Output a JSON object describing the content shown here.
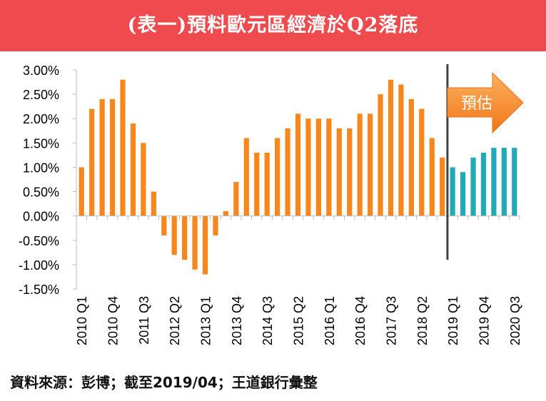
{
  "header": {
    "title": "(表一)預料歐元區經濟於Q2落底"
  },
  "colors": {
    "banner": "#ef4b4f",
    "actual": "#f7861c",
    "forecast": "#22a9b7",
    "divider": "#404040"
  },
  "forecast_label": "預估",
  "source": "資料來源：彭博；截至2019/04；王道銀行彙整",
  "chart_data": {
    "type": "bar",
    "title": "",
    "xlabel": "",
    "ylabel": "",
    "ylim": [
      -1.5,
      3.0
    ],
    "yticks": [
      3.0,
      2.5,
      2.0,
      1.5,
      1.0,
      0.5,
      0.0,
      -0.5,
      -1.0,
      -1.5
    ],
    "ytick_labels": [
      "3.00%",
      "2.50%",
      "2.00%",
      "1.50%",
      "1.00%",
      "0.50%",
      "0.00%",
      "-0.50%",
      "-1.00%",
      "-1.50%"
    ],
    "grid": false,
    "categories": [
      "2010 Q1",
      "2010 Q2",
      "2010 Q3",
      "2010 Q4",
      "2011 Q1",
      "2011 Q2",
      "2011 Q3",
      "2011 Q4",
      "2012 Q1",
      "2012 Q2",
      "2012 Q3",
      "2012 Q4",
      "2013 Q1",
      "2013 Q2",
      "2013 Q3",
      "2013 Q4",
      "2014 Q1",
      "2014 Q2",
      "2014 Q3",
      "2014 Q4",
      "2015 Q1",
      "2015 Q2",
      "2015 Q3",
      "2015 Q4",
      "2016 Q1",
      "2016 Q2",
      "2016 Q3",
      "2016 Q4",
      "2017 Q1",
      "2017 Q2",
      "2017 Q3",
      "2017 Q4",
      "2018 Q1",
      "2018 Q2",
      "2018 Q3",
      "2018 Q4",
      "2019 Q1",
      "2019 Q2",
      "2019 Q3",
      "2019 Q4",
      "2020 Q1",
      "2020 Q2",
      "2020 Q3"
    ],
    "shown_xtick_labels": [
      "2010 Q1",
      "2010 Q4",
      "2011 Q3",
      "2012 Q2",
      "2013 Q1",
      "2013 Q4",
      "2014 Q3",
      "2015 Q2",
      "2016 Q1",
      "2016 Q4",
      "2017 Q3",
      "2018 Q2",
      "2019 Q1",
      "2019 Q4",
      "2020 Q3"
    ],
    "series": [
      {
        "values": [
          1.0,
          2.2,
          2.4,
          2.4,
          2.8,
          1.9,
          1.5,
          0.5,
          -0.4,
          -0.8,
          -0.9,
          -1.1,
          -1.2,
          -0.4,
          0.1,
          0.7,
          1.6,
          1.3,
          1.3,
          1.6,
          1.8,
          2.1,
          2.0,
          2.0,
          2.0,
          1.8,
          1.8,
          2.1,
          2.1,
          2.5,
          2.8,
          2.7,
          2.4,
          2.2,
          1.6,
          1.2,
          null,
          null,
          null,
          null,
          null,
          null,
          null
        ]
      },
      {
        "values": [
          null,
          null,
          null,
          null,
          null,
          null,
          null,
          null,
          null,
          null,
          null,
          null,
          null,
          null,
          null,
          null,
          null,
          null,
          null,
          null,
          null,
          null,
          null,
          null,
          null,
          null,
          null,
          null,
          null,
          null,
          null,
          null,
          null,
          null,
          null,
          null,
          1.0,
          0.9,
          1.2,
          1.3,
          1.4,
          1.4,
          1.4
        ]
      }
    ]
  }
}
